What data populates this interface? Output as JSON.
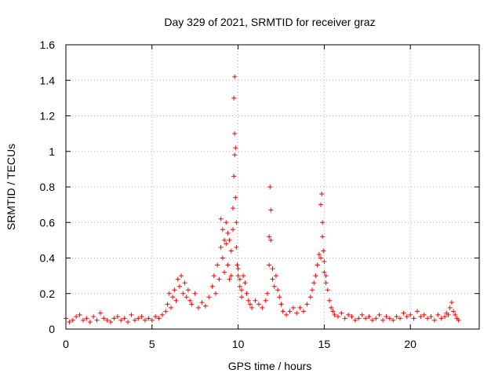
{
  "chart_data": {
    "type": "scatter",
    "title": "Day 329 of 2021, SRMTID for receiver graz",
    "xlabel": "GPS time / hours",
    "ylabel": "SRMTID / TECUs",
    "xlim": [
      0,
      24
    ],
    "ylim": [
      0,
      1.6
    ],
    "grid": true,
    "marker": "+",
    "series_color": "#ff0000",
    "x_ticks": [
      0,
      5,
      10,
      15,
      20
    ],
    "x_tick_labels": [
      "0",
      "5",
      "10",
      "15",
      "20"
    ],
    "y_ticks": [
      0,
      0.2,
      0.4,
      0.6,
      0.8,
      1.0,
      1.2,
      1.4,
      1.6
    ],
    "y_tick_labels": [
      "0",
      "0.2",
      "0.4",
      "0.6",
      "0.8",
      "1",
      "1.2",
      "1.4",
      "1.6"
    ],
    "series": [
      {
        "name": "SRMTID",
        "x": [
          0.0,
          0.2,
          0.4,
          0.6,
          0.8,
          1.0,
          1.2,
          1.4,
          1.6,
          1.8,
          2.0,
          2.2,
          2.4,
          2.6,
          2.8,
          3.0,
          3.2,
          3.4,
          3.6,
          3.8,
          4.0,
          4.2,
          4.4,
          4.6,
          4.8,
          5.0,
          5.2,
          5.4,
          5.6,
          5.8,
          5.9,
          6.0,
          6.1,
          6.2,
          6.3,
          6.4,
          6.5,
          6.6,
          6.7,
          6.8,
          6.9,
          7.0,
          7.1,
          7.2,
          7.3,
          7.5,
          7.7,
          7.9,
          8.1,
          8.3,
          8.5,
          8.6,
          8.7,
          8.8,
          8.9,
          9.0,
          9.0,
          9.1,
          9.1,
          9.2,
          9.2,
          9.3,
          9.3,
          9.4,
          9.4,
          9.5,
          9.5,
          9.6,
          9.6,
          9.7,
          9.7,
          9.75,
          9.75,
          9.8,
          9.8,
          9.8,
          9.85,
          9.85,
          9.9,
          9.9,
          9.95,
          10.0,
          10.0,
          10.1,
          10.1,
          10.2,
          10.2,
          10.3,
          10.4,
          10.5,
          10.6,
          10.7,
          10.8,
          11.0,
          11.2,
          11.4,
          11.6,
          11.7,
          11.8,
          11.8,
          11.85,
          11.9,
          11.9,
          12.0,
          12.0,
          12.1,
          12.2,
          12.3,
          12.4,
          12.5,
          12.6,
          12.8,
          13.0,
          13.2,
          13.4,
          13.6,
          13.8,
          14.0,
          14.2,
          14.3,
          14.4,
          14.5,
          14.6,
          14.7,
          14.8,
          14.8,
          14.85,
          14.9,
          14.9,
          14.95,
          15.0,
          15.0,
          15.1,
          15.1,
          15.2,
          15.3,
          15.4,
          15.5,
          15.6,
          15.8,
          16.0,
          16.2,
          16.4,
          16.6,
          16.8,
          17.0,
          17.2,
          17.4,
          17.6,
          17.8,
          18.0,
          18.2,
          18.4,
          18.6,
          18.8,
          19.0,
          19.2,
          19.4,
          19.6,
          19.8,
          20.0,
          20.2,
          20.4,
          20.6,
          20.8,
          21.0,
          21.2,
          21.4,
          21.6,
          21.8,
          22.0,
          22.1,
          22.2,
          22.3,
          22.4,
          22.5,
          22.6,
          22.7,
          22.8
        ],
        "y": [
          0.06,
          0.04,
          0.05,
          0.07,
          0.08,
          0.05,
          0.06,
          0.04,
          0.07,
          0.05,
          0.09,
          0.06,
          0.05,
          0.04,
          0.06,
          0.07,
          0.05,
          0.06,
          0.04,
          0.08,
          0.05,
          0.06,
          0.07,
          0.05,
          0.06,
          0.05,
          0.07,
          0.06,
          0.08,
          0.1,
          0.14,
          0.2,
          0.12,
          0.18,
          0.22,
          0.16,
          0.28,
          0.24,
          0.3,
          0.2,
          0.26,
          0.18,
          0.22,
          0.16,
          0.14,
          0.2,
          0.12,
          0.15,
          0.13,
          0.18,
          0.24,
          0.3,
          0.2,
          0.36,
          0.28,
          0.46,
          0.62,
          0.4,
          0.56,
          0.32,
          0.5,
          0.48,
          0.6,
          0.36,
          0.54,
          0.28,
          0.5,
          0.3,
          0.44,
          0.68,
          0.56,
          0.86,
          1.3,
          1.42,
          1.1,
          0.98,
          1.02,
          0.74,
          0.6,
          0.46,
          0.36,
          0.3,
          0.34,
          0.24,
          0.28,
          0.22,
          0.18,
          0.3,
          0.26,
          0.2,
          0.16,
          0.14,
          0.12,
          0.16,
          0.14,
          0.12,
          0.16,
          0.2,
          0.36,
          0.52,
          0.8,
          0.67,
          0.5,
          0.34,
          0.28,
          0.24,
          0.3,
          0.22,
          0.18,
          0.14,
          0.1,
          0.08,
          0.1,
          0.12,
          0.09,
          0.12,
          0.1,
          0.14,
          0.18,
          0.22,
          0.26,
          0.3,
          0.36,
          0.42,
          0.4,
          0.7,
          0.76,
          0.6,
          0.52,
          0.44,
          0.38,
          0.32,
          0.26,
          0.3,
          0.22,
          0.16,
          0.12,
          0.1,
          0.08,
          0.07,
          0.09,
          0.06,
          0.08,
          0.07,
          0.05,
          0.06,
          0.08,
          0.06,
          0.07,
          0.05,
          0.06,
          0.08,
          0.05,
          0.07,
          0.06,
          0.05,
          0.07,
          0.06,
          0.09,
          0.07,
          0.08,
          0.06,
          0.1,
          0.07,
          0.08,
          0.06,
          0.07,
          0.05,
          0.08,
          0.06,
          0.07,
          0.09,
          0.08,
          0.12,
          0.15,
          0.1,
          0.08,
          0.06,
          0.05
        ]
      }
    ]
  }
}
